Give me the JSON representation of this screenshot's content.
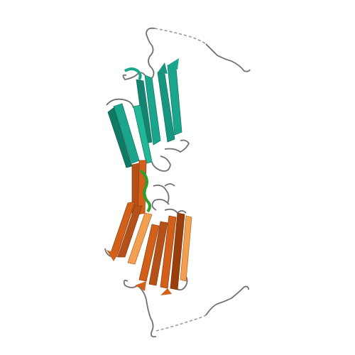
{
  "image": {
    "background": "#ffffff",
    "colors": {
      "chain_a": "#1aa58c",
      "chain_a_dark": "#0f7a66",
      "chain_b": "#d2601a",
      "chain_b_light": "#f0a050",
      "chain_b_dark": "#9a3e0c",
      "coil": "#707070",
      "disordered": "#9a9a9a",
      "helix_green": "#2ca02c"
    }
  }
}
